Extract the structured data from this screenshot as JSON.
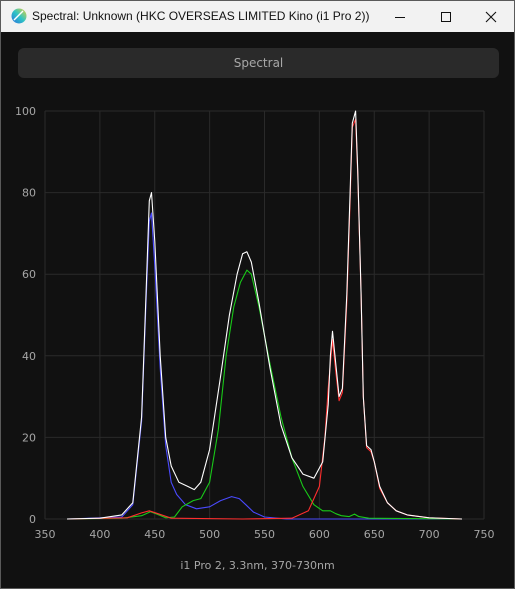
{
  "window": {
    "title": "Spectral: Unknown (HKC OVERSEAS LIMITED Kino (i1 Pro 2))"
  },
  "tab": {
    "label": "Spectral"
  },
  "caption": "i1 Pro 2, 3.3nm, 370-730nm",
  "colors": {
    "background": "#111111",
    "grid": "#2a2a2a",
    "white": "#ffffff",
    "blue": "#4a4aff",
    "green": "#19c919",
    "red": "#ff2e2e"
  },
  "icons": [
    "spectrum-app-icon",
    "minimize-icon",
    "maximize-icon",
    "close-icon"
  ],
  "chart_data": {
    "type": "line",
    "title": "",
    "xlabel": "",
    "ylabel": "",
    "xlim": [
      350,
      750
    ],
    "ylim": [
      0,
      100
    ],
    "x_ticks": [
      350,
      400,
      450,
      500,
      550,
      600,
      650,
      700,
      750
    ],
    "y_ticks": [
      0,
      20,
      40,
      60,
      80,
      100
    ],
    "grid": true,
    "legend": "none",
    "series": [
      {
        "color": "#ffffff",
        "points": [
          [
            370,
            0
          ],
          [
            400,
            0.2
          ],
          [
            420,
            1
          ],
          [
            430,
            4
          ],
          [
            438,
            25
          ],
          [
            442,
            55
          ],
          [
            445,
            78
          ],
          [
            447,
            80
          ],
          [
            450,
            68
          ],
          [
            455,
            40
          ],
          [
            460,
            20
          ],
          [
            465,
            13
          ],
          [
            472,
            9
          ],
          [
            480,
            8
          ],
          [
            486,
            7.2
          ],
          [
            492,
            9
          ],
          [
            500,
            17
          ],
          [
            510,
            35
          ],
          [
            518,
            50
          ],
          [
            525,
            60
          ],
          [
            530,
            65
          ],
          [
            534,
            65.5
          ],
          [
            538,
            63
          ],
          [
            545,
            53
          ],
          [
            555,
            37
          ],
          [
            565,
            23
          ],
          [
            575,
            15
          ],
          [
            585,
            11
          ],
          [
            595,
            10
          ],
          [
            603,
            14
          ],
          [
            608,
            28
          ],
          [
            610,
            40
          ],
          [
            612,
            46
          ],
          [
            615,
            38
          ],
          [
            618,
            30
          ],
          [
            621,
            32
          ],
          [
            625,
            55
          ],
          [
            628,
            80
          ],
          [
            630,
            97
          ],
          [
            633,
            100
          ],
          [
            635,
            85
          ],
          [
            638,
            55
          ],
          [
            640,
            30
          ],
          [
            643,
            18
          ],
          [
            647,
            17
          ],
          [
            650,
            14
          ],
          [
            655,
            8
          ],
          [
            662,
            4
          ],
          [
            670,
            2
          ],
          [
            680,
            1
          ],
          [
            700,
            0.3
          ],
          [
            730,
            0
          ]
        ]
      },
      {
        "color": "#4a4aff",
        "points": [
          [
            370,
            0
          ],
          [
            420,
            0.5
          ],
          [
            430,
            3.5
          ],
          [
            438,
            24
          ],
          [
            442,
            53
          ],
          [
            445,
            73
          ],
          [
            447,
            75
          ],
          [
            450,
            62
          ],
          [
            455,
            37
          ],
          [
            460,
            18
          ],
          [
            465,
            9
          ],
          [
            470,
            6
          ],
          [
            478,
            3.5
          ],
          [
            488,
            2.5
          ],
          [
            500,
            3
          ],
          [
            510,
            4.5
          ],
          [
            520,
            5.5
          ],
          [
            527,
            5
          ],
          [
            533,
            3.5
          ],
          [
            540,
            1.7
          ],
          [
            550,
            0.5
          ],
          [
            570,
            0
          ],
          [
            730,
            0
          ]
        ]
      },
      {
        "color": "#19c919",
        "points": [
          [
            370,
            0
          ],
          [
            420,
            0.2
          ],
          [
            438,
            0.8
          ],
          [
            446,
            1.8
          ],
          [
            452,
            1.2
          ],
          [
            460,
            0.3
          ],
          [
            468,
            0.5
          ],
          [
            475,
            3
          ],
          [
            485,
            4.5
          ],
          [
            492,
            5
          ],
          [
            500,
            9
          ],
          [
            508,
            22
          ],
          [
            515,
            40
          ],
          [
            522,
            52
          ],
          [
            528,
            58
          ],
          [
            534,
            61
          ],
          [
            538,
            60
          ],
          [
            545,
            52
          ],
          [
            555,
            38
          ],
          [
            565,
            25
          ],
          [
            575,
            15
          ],
          [
            585,
            8
          ],
          [
            595,
            3.5
          ],
          [
            603,
            2
          ],
          [
            610,
            2
          ],
          [
            615,
            1.3
          ],
          [
            620,
            0.8
          ],
          [
            627,
            0.6
          ],
          [
            632,
            1.2
          ],
          [
            636,
            0.6
          ],
          [
            645,
            0.2
          ],
          [
            730,
            0
          ]
        ]
      },
      {
        "color": "#ff2e2e",
        "points": [
          [
            370,
            0
          ],
          [
            425,
            0.3
          ],
          [
            438,
            1.5
          ],
          [
            445,
            2
          ],
          [
            452,
            1.4
          ],
          [
            465,
            0.2
          ],
          [
            530,
            0
          ],
          [
            575,
            0.2
          ],
          [
            590,
            2
          ],
          [
            600,
            8
          ],
          [
            605,
            20
          ],
          [
            608,
            32
          ],
          [
            612,
            44
          ],
          [
            615,
            36
          ],
          [
            618,
            29
          ],
          [
            621,
            31
          ],
          [
            625,
            53
          ],
          [
            628,
            78
          ],
          [
            630,
            96
          ],
          [
            633,
            98
          ],
          [
            635,
            84
          ],
          [
            638,
            55
          ],
          [
            640,
            30
          ],
          [
            643,
            17.5
          ],
          [
            647,
            16.5
          ],
          [
            650,
            14
          ],
          [
            655,
            7.5
          ],
          [
            662,
            4
          ],
          [
            670,
            2
          ],
          [
            680,
            1
          ],
          [
            700,
            0.3
          ],
          [
            730,
            0
          ]
        ]
      }
    ]
  }
}
